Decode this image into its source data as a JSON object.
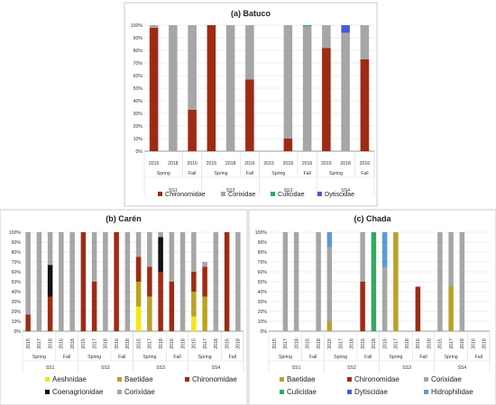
{
  "colors": {
    "Aeshnidae": "#f5e614",
    "Baetidae": "#b8a324",
    "Chironomidae": "#9e2b14",
    "Coenagrionidae": "#111111",
    "Corixidae": "#a6a6a6",
    "Culicidae": "#2bae60",
    "Dytiscidae": "#4a5bd1",
    "Hidrophilidae": "#5b9bd5",
    "red_overlay": "#e8120c"
  },
  "chart_data": [
    {
      "type": "stacked-bar",
      "title": "(a) Batuco",
      "y_ticks": [
        "0%",
        "10%",
        "20%",
        "30%",
        "40%",
        "50%",
        "60%",
        "70%",
        "80%",
        "90%",
        "100%"
      ],
      "ylim": [
        0,
        100
      ],
      "grid": true,
      "categories": [
        "2015",
        "2018",
        "2016",
        "2015",
        "2018",
        "2016",
        "2015",
        "2018",
        "2016",
        "2015",
        "2018",
        "2016"
      ],
      "season_groups": [
        {
          "label": "Spring",
          "start": 0,
          "end": 1
        },
        {
          "label": "Fall",
          "start": 2,
          "end": 2
        },
        {
          "label": "Spring",
          "start": 3,
          "end": 4
        },
        {
          "label": "Fall",
          "start": 5,
          "end": 5
        },
        {
          "label": "Spring",
          "start": 6,
          "end": 7
        },
        {
          "label": "Fall",
          "start": 8,
          "end": 8
        },
        {
          "label": "Spring",
          "start": 9,
          "end": 10
        },
        {
          "label": "Fall",
          "start": 11,
          "end": 11
        }
      ],
      "site_groups": [
        {
          "label": "SS1",
          "start": 0,
          "end": 2
        },
        {
          "label": "SS2",
          "start": 3,
          "end": 5
        },
        {
          "label": "SS3",
          "start": 6,
          "end": 8
        },
        {
          "label": "SS4",
          "start": 9,
          "end": 11
        }
      ],
      "series": [
        {
          "name": "Chironomidae",
          "values": [
            98,
            0,
            33,
            100,
            0,
            57,
            0,
            10,
            0,
            82,
            0,
            73
          ]
        },
        {
          "name": "Corixidae",
          "values": [
            2,
            100,
            67,
            0,
            100,
            43,
            0,
            90,
            99,
            18,
            94,
            27
          ]
        },
        {
          "name": "Culicidae",
          "values": [
            0,
            0,
            0,
            0,
            0,
            0,
            0,
            0,
            1,
            0,
            0,
            0
          ]
        },
        {
          "name": "Dytiscidae",
          "values": [
            0,
            0,
            0,
            0,
            0,
            0,
            0,
            0,
            0,
            0,
            6,
            0
          ]
        }
      ],
      "legend": [
        "Chironomidae",
        "Corixidae",
        "Culicidae",
        "Dytiscidae"
      ],
      "legend_position": "bottom"
    },
    {
      "type": "stacked-bar",
      "title": "(b) Carén",
      "y_ticks": [
        "0%",
        "10%",
        "20%",
        "30%",
        "40%",
        "50%",
        "60%",
        "70%",
        "80%",
        "90%",
        "100%"
      ],
      "ylim": [
        0,
        100
      ],
      "grid": true,
      "categories": [
        "2015",
        "2017",
        "2018",
        "2016",
        "2018",
        "2015",
        "2017",
        "2018",
        "2016",
        "2018",
        "2015",
        "2017",
        "2018",
        "2016",
        "2018",
        "2015",
        "2017",
        "2018",
        "2016",
        "2018"
      ],
      "season_groups": [
        {
          "label": "Spring",
          "start": 0,
          "end": 2
        },
        {
          "label": "Fall",
          "start": 3,
          "end": 4
        },
        {
          "label": "Spring",
          "start": 5,
          "end": 7
        },
        {
          "label": "Fall",
          "start": 8,
          "end": 9
        },
        {
          "label": "Spring",
          "start": 10,
          "end": 12
        },
        {
          "label": "Fall",
          "start": 13,
          "end": 14
        },
        {
          "label": "Spring",
          "start": 15,
          "end": 17
        },
        {
          "label": "Fall",
          "start": 18,
          "end": 19
        }
      ],
      "site_groups": [
        {
          "label": "SS1",
          "start": 0,
          "end": 4
        },
        {
          "label": "SS2",
          "start": 5,
          "end": 9
        },
        {
          "label": "SS3",
          "start": 10,
          "end": 14
        },
        {
          "label": "SS4",
          "start": 15,
          "end": 19
        }
      ],
      "series": [
        {
          "name": "Aeshnidae",
          "values": [
            0,
            0,
            0,
            0,
            0,
            0,
            0,
            0,
            0,
            0,
            25,
            0,
            0,
            0,
            0,
            15,
            0,
            0,
            0,
            0
          ]
        },
        {
          "name": "Baetidae",
          "values": [
            0,
            0,
            0,
            0,
            0,
            0,
            0,
            0,
            0,
            0,
            25,
            35,
            0,
            0,
            0,
            25,
            35,
            0,
            0,
            0
          ]
        },
        {
          "name": "Chironomidae",
          "values": [
            17,
            0,
            35,
            0,
            0,
            100,
            50,
            0,
            100,
            0,
            25,
            30,
            60,
            50,
            0,
            20,
            30,
            0,
            100,
            0
          ]
        },
        {
          "name": "Coenagrionidae",
          "values": [
            0,
            0,
            32,
            0,
            0,
            0,
            0,
            0,
            0,
            0,
            0,
            0,
            35,
            0,
            0,
            0,
            0,
            0,
            0,
            0
          ]
        },
        {
          "name": "Corixidae",
          "values": [
            83,
            100,
            33,
            100,
            100,
            0,
            50,
            100,
            0,
            100,
            25,
            35,
            5,
            50,
            100,
            40,
            5,
            100,
            0,
            100
          ]
        }
      ],
      "legend": [
        "Aeshnidae",
        "Baetidae",
        "Chironomidae",
        "Coenagrionidae",
        "Corixidae"
      ],
      "legend_position": "bottom"
    },
    {
      "type": "stacked-bar",
      "title": "(c) Chada",
      "y_ticks": [
        "0%",
        "10%",
        "20%",
        "30%",
        "40%",
        "50%",
        "60%",
        "70%",
        "80%",
        "90%",
        "100%"
      ],
      "ylim": [
        0,
        100
      ],
      "grid": true,
      "categories": [
        "2015",
        "2017",
        "2018",
        "2016",
        "2018",
        "2015",
        "2017",
        "2018",
        "2016",
        "2018",
        "2015",
        "2017",
        "2018",
        "2016",
        "2018",
        "2015",
        "2017",
        "2018",
        "2016",
        "2018"
      ],
      "season_groups": [
        {
          "label": "Spring",
          "start": 0,
          "end": 2
        },
        {
          "label": "Fall",
          "start": 3,
          "end": 4
        },
        {
          "label": "Spring",
          "start": 5,
          "end": 7
        },
        {
          "label": "Fall",
          "start": 8,
          "end": 9
        },
        {
          "label": "Spring",
          "start": 10,
          "end": 12
        },
        {
          "label": "Fall",
          "start": 13,
          "end": 14
        },
        {
          "label": "Spring",
          "start": 15,
          "end": 17
        },
        {
          "label": "Fall",
          "start": 18,
          "end": 19
        }
      ],
      "site_groups": [
        {
          "label": "SS1",
          "start": 0,
          "end": 4
        },
        {
          "label": "SS2",
          "start": 5,
          "end": 9
        },
        {
          "label": "SS3",
          "start": 10,
          "end": 14
        },
        {
          "label": "SS4",
          "start": 15,
          "end": 19
        }
      ],
      "series": [
        {
          "name": "Baetidae",
          "values": [
            0,
            0,
            0,
            0,
            0,
            10,
            0,
            0,
            0,
            0,
            0,
            100,
            0,
            0,
            0,
            0,
            45,
            0,
            0,
            0
          ]
        },
        {
          "name": "Chironomidae",
          "values": [
            0,
            0,
            0,
            0,
            0,
            0,
            0,
            0,
            50,
            0,
            0,
            0,
            0,
            45,
            0,
            0,
            0,
            0,
            0,
            0
          ]
        },
        {
          "name": "Corixidae",
          "values": [
            0,
            100,
            100,
            0,
            100,
            75,
            0,
            0,
            50,
            0,
            65,
            0,
            0,
            0,
            0,
            100,
            55,
            100,
            0,
            0
          ]
        },
        {
          "name": "Culicidae",
          "values": [
            0,
            0,
            0,
            0,
            0,
            0,
            0,
            0,
            0,
            100,
            0,
            0,
            0,
            0,
            0,
            0,
            0,
            0,
            0,
            0
          ]
        },
        {
          "name": "Dytiscidae",
          "values": [
            0,
            0,
            0,
            0,
            0,
            0,
            0,
            0,
            0,
            0,
            0,
            0,
            0,
            0,
            0,
            0,
            0,
            0,
            0,
            0
          ]
        },
        {
          "name": "Hidrophilidae",
          "values": [
            0,
            0,
            0,
            0,
            0,
            15,
            0,
            0,
            0,
            0,
            35,
            0,
            0,
            0,
            0,
            0,
            0,
            0,
            0,
            0
          ]
        }
      ],
      "legend": [
        "Baetidae",
        "Chironomidae",
        "Corixidae",
        "Culicidae",
        "Dytiscidae",
        "Hidrophilidae"
      ],
      "legend_position": "bottom"
    }
  ]
}
